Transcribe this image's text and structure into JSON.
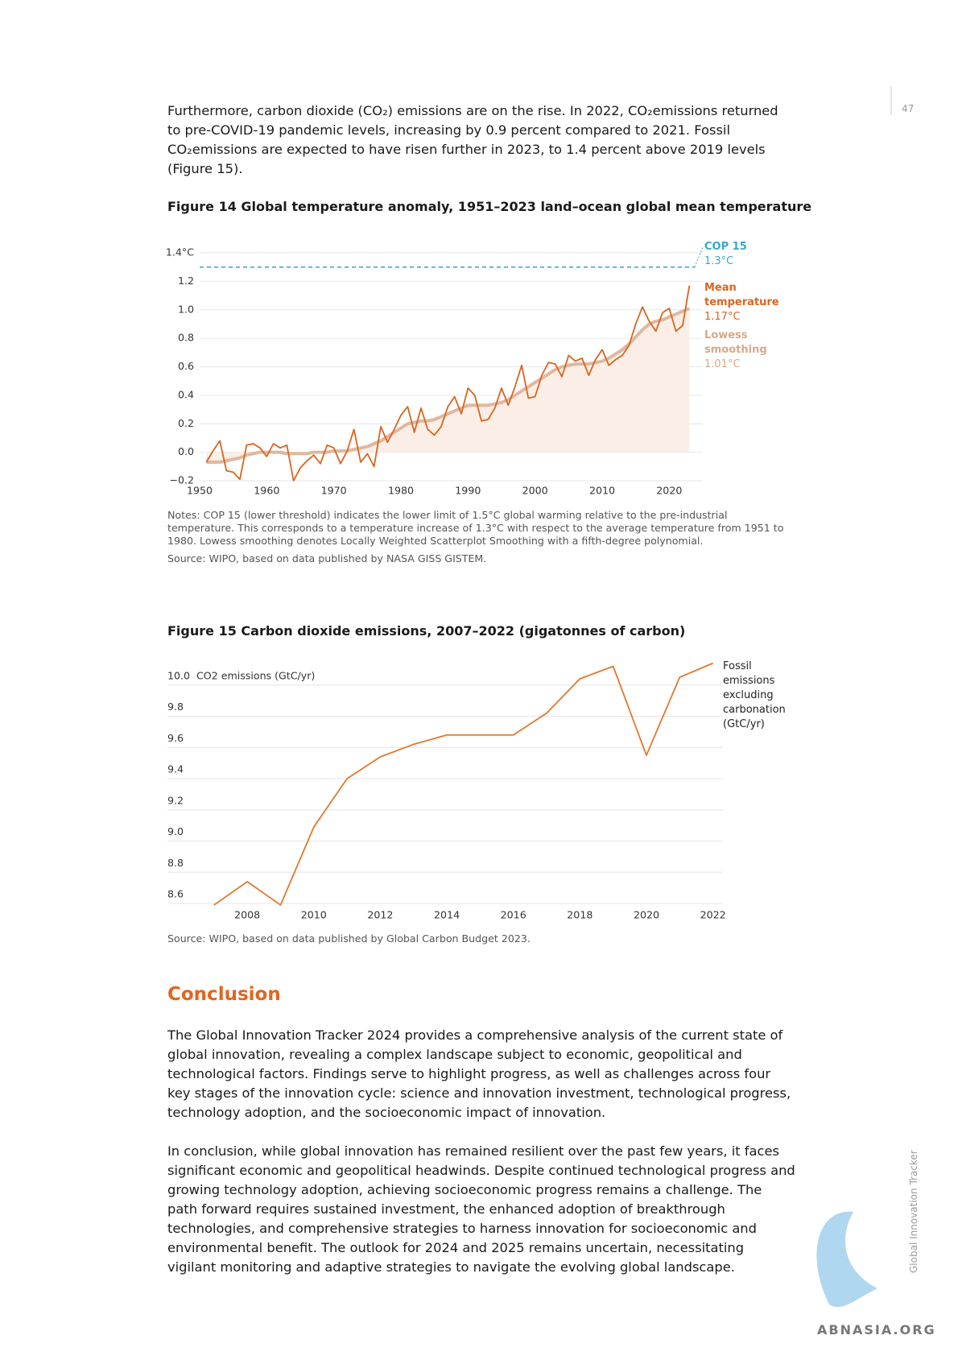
{
  "page_number": "47",
  "intro": "Furthermore, carbon dioxide (CO₂) emissions are on the rise. In 2022, CO₂emissions returned to pre-COVID-19 pandemic levels, increasing by 0.9 percent compared to 2021. Fossil CO₂emissions are expected to have risen further in 2023, to 1.4 percent above 2019 levels (Figure 15).",
  "chart_data": [
    {
      "type": "line",
      "title": "Figure 14 Global temperature anomaly, 1951–2023 land–ocean global mean temperature",
      "x": [
        1951,
        1952,
        1953,
        1954,
        1955,
        1956,
        1957,
        1958,
        1959,
        1960,
        1961,
        1962,
        1963,
        1964,
        1965,
        1966,
        1967,
        1968,
        1969,
        1970,
        1971,
        1972,
        1973,
        1974,
        1975,
        1976,
        1977,
        1978,
        1979,
        1980,
        1981,
        1982,
        1983,
        1984,
        1985,
        1986,
        1987,
        1988,
        1989,
        1990,
        1991,
        1992,
        1993,
        1994,
        1995,
        1996,
        1997,
        1998,
        1999,
        2000,
        2001,
        2002,
        2003,
        2004,
        2005,
        2006,
        2007,
        2008,
        2009,
        2010,
        2011,
        2012,
        2013,
        2014,
        2015,
        2016,
        2017,
        2018,
        2019,
        2020,
        2021,
        2022,
        2023
      ],
      "series": [
        {
          "name": "Mean temperature",
          "color": "#d9651f",
          "end_label": "1.17°C",
          "values": [
            -0.07,
            0.01,
            0.08,
            -0.13,
            -0.14,
            -0.19,
            0.05,
            0.06,
            0.03,
            -0.03,
            0.06,
            0.03,
            0.05,
            -0.2,
            -0.11,
            -0.06,
            -0.02,
            -0.08,
            0.05,
            0.03,
            -0.08,
            0.01,
            0.16,
            -0.07,
            -0.01,
            -0.1,
            0.18,
            0.07,
            0.16,
            0.26,
            0.32,
            0.14,
            0.31,
            0.16,
            0.12,
            0.18,
            0.32,
            0.39,
            0.27,
            0.45,
            0.4,
            0.22,
            0.23,
            0.31,
            0.45,
            0.33,
            0.46,
            0.61,
            0.38,
            0.39,
            0.54,
            0.63,
            0.62,
            0.53,
            0.68,
            0.64,
            0.66,
            0.54,
            0.65,
            0.72,
            0.61,
            0.65,
            0.68,
            0.75,
            0.9,
            1.02,
            0.92,
            0.85,
            0.98,
            1.01,
            0.85,
            0.89,
            1.17
          ]
        },
        {
          "name": "Lowess smoothing",
          "color": "#d9a888",
          "end_label": "1.01°C",
          "values": [
            -0.07,
            -0.07,
            -0.07,
            -0.06,
            -0.05,
            -0.04,
            -0.02,
            -0.01,
            0,
            0,
            0,
            0,
            -0.01,
            -0.01,
            -0.01,
            -0.01,
            0,
            0,
            0,
            0.01,
            0.01,
            0.01,
            0.02,
            0.03,
            0.04,
            0.06,
            0.08,
            0.11,
            0.14,
            0.17,
            0.2,
            0.21,
            0.22,
            0.22,
            0.23,
            0.25,
            0.27,
            0.29,
            0.31,
            0.33,
            0.33,
            0.33,
            0.33,
            0.34,
            0.35,
            0.37,
            0.4,
            0.43,
            0.46,
            0.49,
            0.52,
            0.55,
            0.58,
            0.6,
            0.61,
            0.62,
            0.62,
            0.62,
            0.63,
            0.64,
            0.66,
            0.69,
            0.72,
            0.76,
            0.81,
            0.86,
            0.9,
            0.92,
            0.93,
            0.95,
            0.97,
            0.99,
            1.01
          ]
        }
      ],
      "reference_line": {
        "name": "COP 15",
        "value": 1.3,
        "label": "1.3°C",
        "color": "#3aa7c9"
      },
      "xlim": [
        1950,
        2025
      ],
      "xticks": [
        1950,
        1960,
        1970,
        1980,
        1990,
        2000,
        2010,
        2020
      ],
      "ylim": [
        -0.2,
        1.4
      ],
      "yticks": [
        {
          "value": -0.2,
          "label": "−0.2"
        },
        0.2,
        {
          "value": 0,
          "label": "0.0"
        },
        0.4,
        0.6,
        0.8,
        {
          "value": 1,
          "label": "1.0"
        },
        1.2,
        {
          "value": 1.4,
          "label": "1.4°C"
        }
      ],
      "grid": true,
      "notes": "Notes: COP 15 (lower threshold) indicates the lower limit of 1.5°C global warming relative to the pre-industrial temperature. This corresponds to a temperature increase of 1.3°C with respect to the average temperature from 1951 to 1980. Lowess smoothing denotes Locally Weighted Scatterplot Smoothing with a fifth-degree polynomial.",
      "source": "Source: WIPO, based on data published by NASA GISS GISTEM."
    },
    {
      "type": "line",
      "title": "Figure 15 Carbon dioxide emissions, 2007–2022 (gigatonnes of carbon)",
      "y_label": "CO2 emissions (GtC/yr)",
      "x": [
        2007,
        2008,
        2009,
        2010,
        2011,
        2012,
        2013,
        2014,
        2015,
        2016,
        2017,
        2018,
        2019,
        2020,
        2021,
        2022
      ],
      "series": [
        {
          "name": "Fossil emissions excluding carbonation (GtC/yr)",
          "color": "#e0782e",
          "values": [
            8.59,
            8.74,
            8.59,
            9.09,
            9.4,
            9.54,
            9.62,
            9.68,
            9.68,
            9.68,
            9.82,
            10.04,
            10.12,
            9.55,
            10.05,
            10.14
          ]
        }
      ],
      "xlim": [
        2005.6,
        2022.3
      ],
      "xticks": [
        2008,
        2010,
        2012,
        2014,
        2016,
        2018,
        2020,
        2022
      ],
      "ylim": [
        8.6,
        10.2
      ],
      "yticks": [
        8.6,
        8.8,
        {
          "value": 9,
          "label": "9.0"
        },
        9.2,
        9.4,
        9.6,
        9.8,
        {
          "value": 10,
          "label": "10.0"
        }
      ],
      "grid": true,
      "source": "Source: WIPO, based on data published by Global Carbon Budget 2023."
    }
  ],
  "conclusion": {
    "heading": "Conclusion",
    "paragraphs": [
      "The Global Innovation Tracker 2024 provides a comprehensive analysis of the current state of global innovation, revealing a complex landscape subject to economic, geopolitical and technological factors. Findings serve to highlight progress, as well as challenges across four key stages of the innovation cycle: science and innovation investment, technological progress, technology adoption, and the socioeconomic impact of innovation.",
      "In conclusion, while global innovation has remained resilient over the past few years, it faces significant economic and geopolitical headwinds. Despite continued technological progress and growing technology adoption, achieving socioeconomic progress remains a challenge. The path forward requires sustained investment, the enhanced adoption of breakthrough technologies, and comprehensive strategies to harness innovation for socioeconomic and environmental benefit. The outlook for 2024 and 2025 remains uncertain, necessitating vigilant monitoring and adaptive strategies to navigate the evolving global landscape."
    ]
  },
  "sidebar": "Global Innovation Tracker",
  "watermark": "ABNASIA.ORG"
}
